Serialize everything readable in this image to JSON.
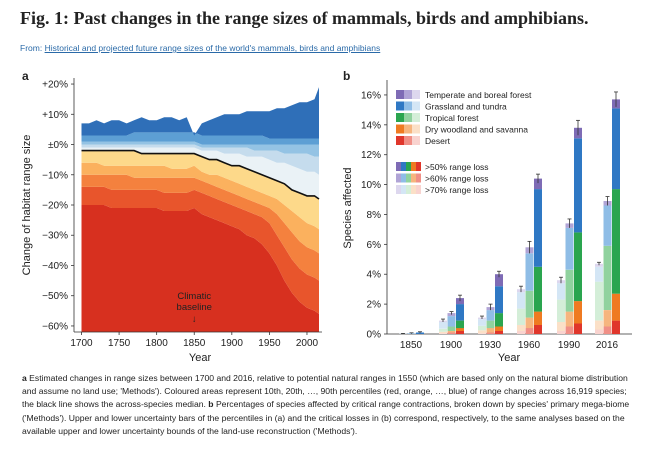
{
  "figure": {
    "title": "Fig. 1: Past changes in the range sizes of mammals, birds and amphibians.",
    "from_label": "From:",
    "from_link": "Historical and projected future range sizes of the world's mammals, birds and amphibians",
    "caption_a_label": "a",
    "caption_a": "Estimated changes in range sizes between 1700 and 2016, relative to potential natural ranges in 1550 (which are based only on the natural biome distribution and assume no land use; 'Methods'). Coloured areas represent 10th, 20th, …, 90th percentiles (red, orange, …, blue) of range changes across 16,919 species; the black line shows the across-species median.",
    "caption_b_label": "b",
    "caption_b": "Percentages of species affected by critical range contractions, broken down by species' primary mega-biome ('Methods'). Upper and lower uncertainty bars of the percentiles in (a) and the critical losses in (b) correspond, respectively, to the same analyses based on the available upper and lower uncertainty bounds of the land-use reconstruction ('Methods')."
  },
  "chart_data": [
    {
      "panel": "a",
      "type": "area",
      "xlabel": "Year",
      "ylabel": "Change of habitat range size",
      "xlim": [
        1690,
        2020
      ],
      "ylim": [
        -62,
        22
      ],
      "x_ticks": [
        1700,
        1750,
        1800,
        1850,
        1900,
        1950,
        2000
      ],
      "y_ticks": [
        20,
        10,
        0,
        -10,
        -20,
        -30,
        -40,
        -50,
        -60
      ],
      "y_tick_labels": [
        "+20%",
        "+10%",
        "±0%",
        "−10%",
        "−20%",
        "−30%",
        "−40%",
        "−50%",
        "−60%"
      ],
      "annotation": {
        "line1": "Climatic",
        "line2": "baseline",
        "arrow": "↓",
        "x": 1850
      },
      "x": [
        1700,
        1710,
        1720,
        1730,
        1740,
        1750,
        1760,
        1770,
        1780,
        1790,
        1800,
        1810,
        1820,
        1830,
        1840,
        1850,
        1860,
        1870,
        1880,
        1890,
        1900,
        1910,
        1920,
        1930,
        1940,
        1950,
        1960,
        1970,
        1980,
        1990,
        2000,
        2010,
        2016
      ],
      "band_colors": [
        "#d7301f",
        "#e8552c",
        "#f4813e",
        "#fbb15e",
        "#fdd98a",
        "#eaf2f6",
        "#c5dced",
        "#94c3e4",
        "#5d9fd4",
        "#2f6fb8"
      ],
      "percentiles": [
        {
          "name": "p10",
          "values": [
            -20,
            -20,
            -20,
            -20,
            -21,
            -21,
            -21,
            -21,
            -21,
            -21,
            -21,
            -22,
            -22,
            -22,
            -22,
            -21,
            -23,
            -24,
            -25,
            -26,
            -27,
            -28,
            -30,
            -31,
            -33,
            -36,
            -40,
            -45,
            -49,
            -52,
            -54,
            -55,
            -56
          ]
        },
        {
          "name": "p20",
          "values": [
            -14,
            -14,
            -14,
            -14,
            -15,
            -15,
            -15,
            -15,
            -15,
            -15,
            -15,
            -16,
            -16,
            -16,
            -16,
            -15,
            -16,
            -17,
            -18,
            -19,
            -20,
            -21,
            -22,
            -23,
            -24,
            -26,
            -30,
            -34,
            -38,
            -41,
            -43,
            -44,
            -45
          ]
        },
        {
          "name": "p30",
          "values": [
            -10,
            -10,
            -10,
            -10,
            -10,
            -10,
            -10,
            -11,
            -11,
            -11,
            -11,
            -11,
            -11,
            -11,
            -11,
            -11,
            -12,
            -13,
            -14,
            -15,
            -16,
            -17,
            -18,
            -19,
            -20,
            -21,
            -23,
            -26,
            -29,
            -32,
            -34,
            -35,
            -36
          ]
        },
        {
          "name": "p40",
          "values": [
            -6,
            -6,
            -6,
            -7,
            -7,
            -7,
            -7,
            -7,
            -7,
            -7,
            -7,
            -7,
            -8,
            -8,
            -8,
            -7,
            -9,
            -10,
            -10,
            -11,
            -12,
            -13,
            -14,
            -15,
            -16,
            -17,
            -18,
            -20,
            -22,
            -24,
            -26,
            -27,
            -28
          ]
        },
        {
          "name": "p50",
          "values": [
            -2,
            -2,
            -2,
            -2,
            -2,
            -2,
            -2,
            -2,
            -3,
            -3,
            -3,
            -3,
            -3,
            -3,
            -3,
            -3,
            -4,
            -5,
            -5,
            -6,
            -7,
            -7,
            -8,
            -9,
            -10,
            -11,
            -12,
            -13,
            -15,
            -16,
            -17,
            -17,
            -18
          ]
        },
        {
          "name": "p60",
          "values": [
            -1,
            -1,
            -1,
            -1,
            -1,
            -1,
            -1,
            -1,
            -1,
            -1,
            -1,
            -1,
            -1,
            -1,
            -1,
            -1,
            -2,
            -2,
            -2,
            -3,
            -3,
            -3,
            -4,
            -4,
            -4,
            -5,
            -6,
            -6,
            -7,
            -8,
            -9,
            -9,
            -10
          ]
        },
        {
          "name": "p70",
          "values": [
            0,
            0,
            0,
            0,
            0,
            0,
            0,
            0,
            0,
            0,
            0,
            0,
            0,
            0,
            0,
            0,
            -1,
            -1,
            -1,
            -1,
            -1,
            -1,
            -1,
            -2,
            -2,
            -2,
            -2,
            -3,
            -3,
            -3,
            -3,
            -4,
            -4
          ]
        },
        {
          "name": "p80",
          "values": [
            1,
            1,
            1,
            1,
            1,
            1,
            1,
            1,
            1,
            1,
            1,
            1,
            1,
            1,
            1,
            1,
            0,
            0,
            0,
            0,
            0,
            0,
            0,
            0,
            0,
            0,
            0,
            0,
            0,
            0,
            0,
            0,
            0
          ]
        },
        {
          "name": "p90",
          "values": [
            3,
            3,
            3,
            3,
            3,
            3,
            3,
            4,
            4,
            4,
            4,
            4,
            4,
            4,
            4,
            4,
            3,
            3,
            3,
            3,
            3,
            3,
            3,
            3,
            3,
            2,
            2,
            2,
            2,
            2,
            2,
            2,
            2
          ]
        },
        {
          "name": "p100",
          "values": [
            7,
            7,
            8,
            7,
            8,
            8,
            7,
            8,
            9,
            8,
            8,
            9,
            9,
            8,
            9,
            3,
            7,
            8,
            9,
            10,
            10,
            10,
            11,
            11,
            11,
            11,
            12,
            12,
            13,
            14,
            14,
            15,
            19
          ]
        }
      ],
      "median": [
        -2,
        -2,
        -2,
        -2,
        -2,
        -2,
        -2,
        -2,
        -3,
        -3,
        -3,
        -3,
        -3,
        -3,
        -3,
        -3,
        -4,
        -5,
        -5,
        -6,
        -7,
        -7,
        -8,
        -9,
        -10,
        -11,
        -12,
        -13,
        -15,
        -16,
        -17,
        -17,
        -18
      ]
    },
    {
      "panel": "b",
      "type": "bar",
      "xlabel": "Year",
      "ylabel": "Species affected",
      "ylim": [
        0,
        17
      ],
      "y_ticks": [
        0,
        2,
        4,
        6,
        8,
        10,
        12,
        14,
        16
      ],
      "y_tick_labels": [
        "0%",
        "2%",
        "4%",
        "6%",
        "8%",
        "10%",
        "12%",
        "14%",
        "16%"
      ],
      "categories": [
        "1850",
        "1900",
        "1930",
        "1960",
        "1990",
        "2016"
      ],
      "biomes": [
        {
          "name": "Temperate and boreal forest",
          "colors": [
            "#7e6bb5",
            "#b0a4d6",
            "#ddd7ee"
          ]
        },
        {
          "name": "Grassland and tundra",
          "colors": [
            "#2f78c4",
            "#8fbde6",
            "#d4e6f5"
          ]
        },
        {
          "name": "Tropical forest",
          "colors": [
            "#2aa54f",
            "#90d29e",
            "#d4eed8"
          ]
        },
        {
          "name": "Dry woodland and savanna",
          "colors": [
            "#ef7a21",
            "#f6b57e",
            "#fbe0c7"
          ]
        },
        {
          "name": "Desert",
          "colors": [
            "#e0362b",
            "#f08f86",
            "#f9d3cf"
          ]
        }
      ],
      "loss_levels": [
        ">50% range loss",
        ">60% range loss",
        ">70% range loss"
      ],
      "series": [
        {
          "level": ">50% range loss",
          "totals": [
            0.1,
            2.4,
            4.0,
            10.4,
            13.8,
            15.7
          ],
          "error": [
            0.05,
            0.2,
            0.2,
            0.3,
            0.5,
            0.5
          ],
          "stack_order_bottom_to_top": [
            "Desert",
            "Dry woodland and savanna",
            "Tropical forest",
            "Grassland and tundra",
            "Temperate and boreal forest"
          ],
          "values": {
            "Desert": [
              0,
              0.2,
              0.2,
              0.6,
              0.7,
              0.9
            ],
            "Dry woodland and savanna": [
              0,
              0.2,
              0.3,
              0.9,
              1.5,
              1.8
            ],
            "Tropical forest": [
              0,
              0.5,
              0.9,
              3.0,
              4.6,
              7.0
            ],
            "Grassland and tundra": [
              0.1,
              1.1,
              1.8,
              5.2,
              6.3,
              5.4
            ],
            "Temperate and boreal forest": [
              0,
              0.4,
              0.8,
              0.7,
              0.7,
              0.6
            ]
          }
        },
        {
          "level": ">60% range loss",
          "totals": [
            0.05,
            1.4,
            1.8,
            5.8,
            7.4,
            8.9
          ],
          "error": [
            0.03,
            0.1,
            0.2,
            0.4,
            0.3,
            0.3
          ],
          "stack_order_bottom_to_top": [
            "Desert",
            "Dry woodland and savanna",
            "Tropical forest",
            "Grassland and tundra",
            "Temperate and boreal forest"
          ],
          "values": {
            "Desert": [
              0,
              0.1,
              0.1,
              0.4,
              0.5,
              0.5
            ],
            "Dry woodland and savanna": [
              0,
              0.1,
              0.3,
              0.7,
              1.0,
              1.1
            ],
            "Tropical forest": [
              0,
              0.3,
              0.5,
              1.8,
              2.8,
              4.3
            ],
            "Grassland and tundra": [
              0.05,
              0.7,
              0.7,
              2.5,
              2.8,
              2.7
            ],
            "Temperate and boreal forest": [
              0,
              0.2,
              0.2,
              0.4,
              0.3,
              0.3
            ]
          }
        },
        {
          "level": ">70% range loss",
          "totals": [
            0.02,
            0.9,
            1.1,
            3.0,
            3.6,
            4.7
          ],
          "error": [
            0.02,
            0.1,
            0.1,
            0.2,
            0.2,
            0.1
          ],
          "stack_order_bottom_to_top": [
            "Desert",
            "Dry woodland and savanna",
            "Tropical forest",
            "Grassland and tundra",
            "Temperate and boreal forest"
          ],
          "values": {
            "Desert": [
              0,
              0.05,
              0.05,
              0.2,
              0.2,
              0.3
            ],
            "Dry woodland and savanna": [
              0,
              0.1,
              0.2,
              0.4,
              0.6,
              0.6
            ],
            "Tropical forest": [
              0,
              0.2,
              0.3,
              1.1,
              1.5,
              2.6
            ],
            "Grassland and tundra": [
              0.02,
              0.45,
              0.45,
              1.1,
              1.1,
              1.0
            ],
            "Temperate and boreal forest": [
              0,
              0.1,
              0.1,
              0.2,
              0.2,
              0.2
            ]
          }
        }
      ]
    }
  ]
}
